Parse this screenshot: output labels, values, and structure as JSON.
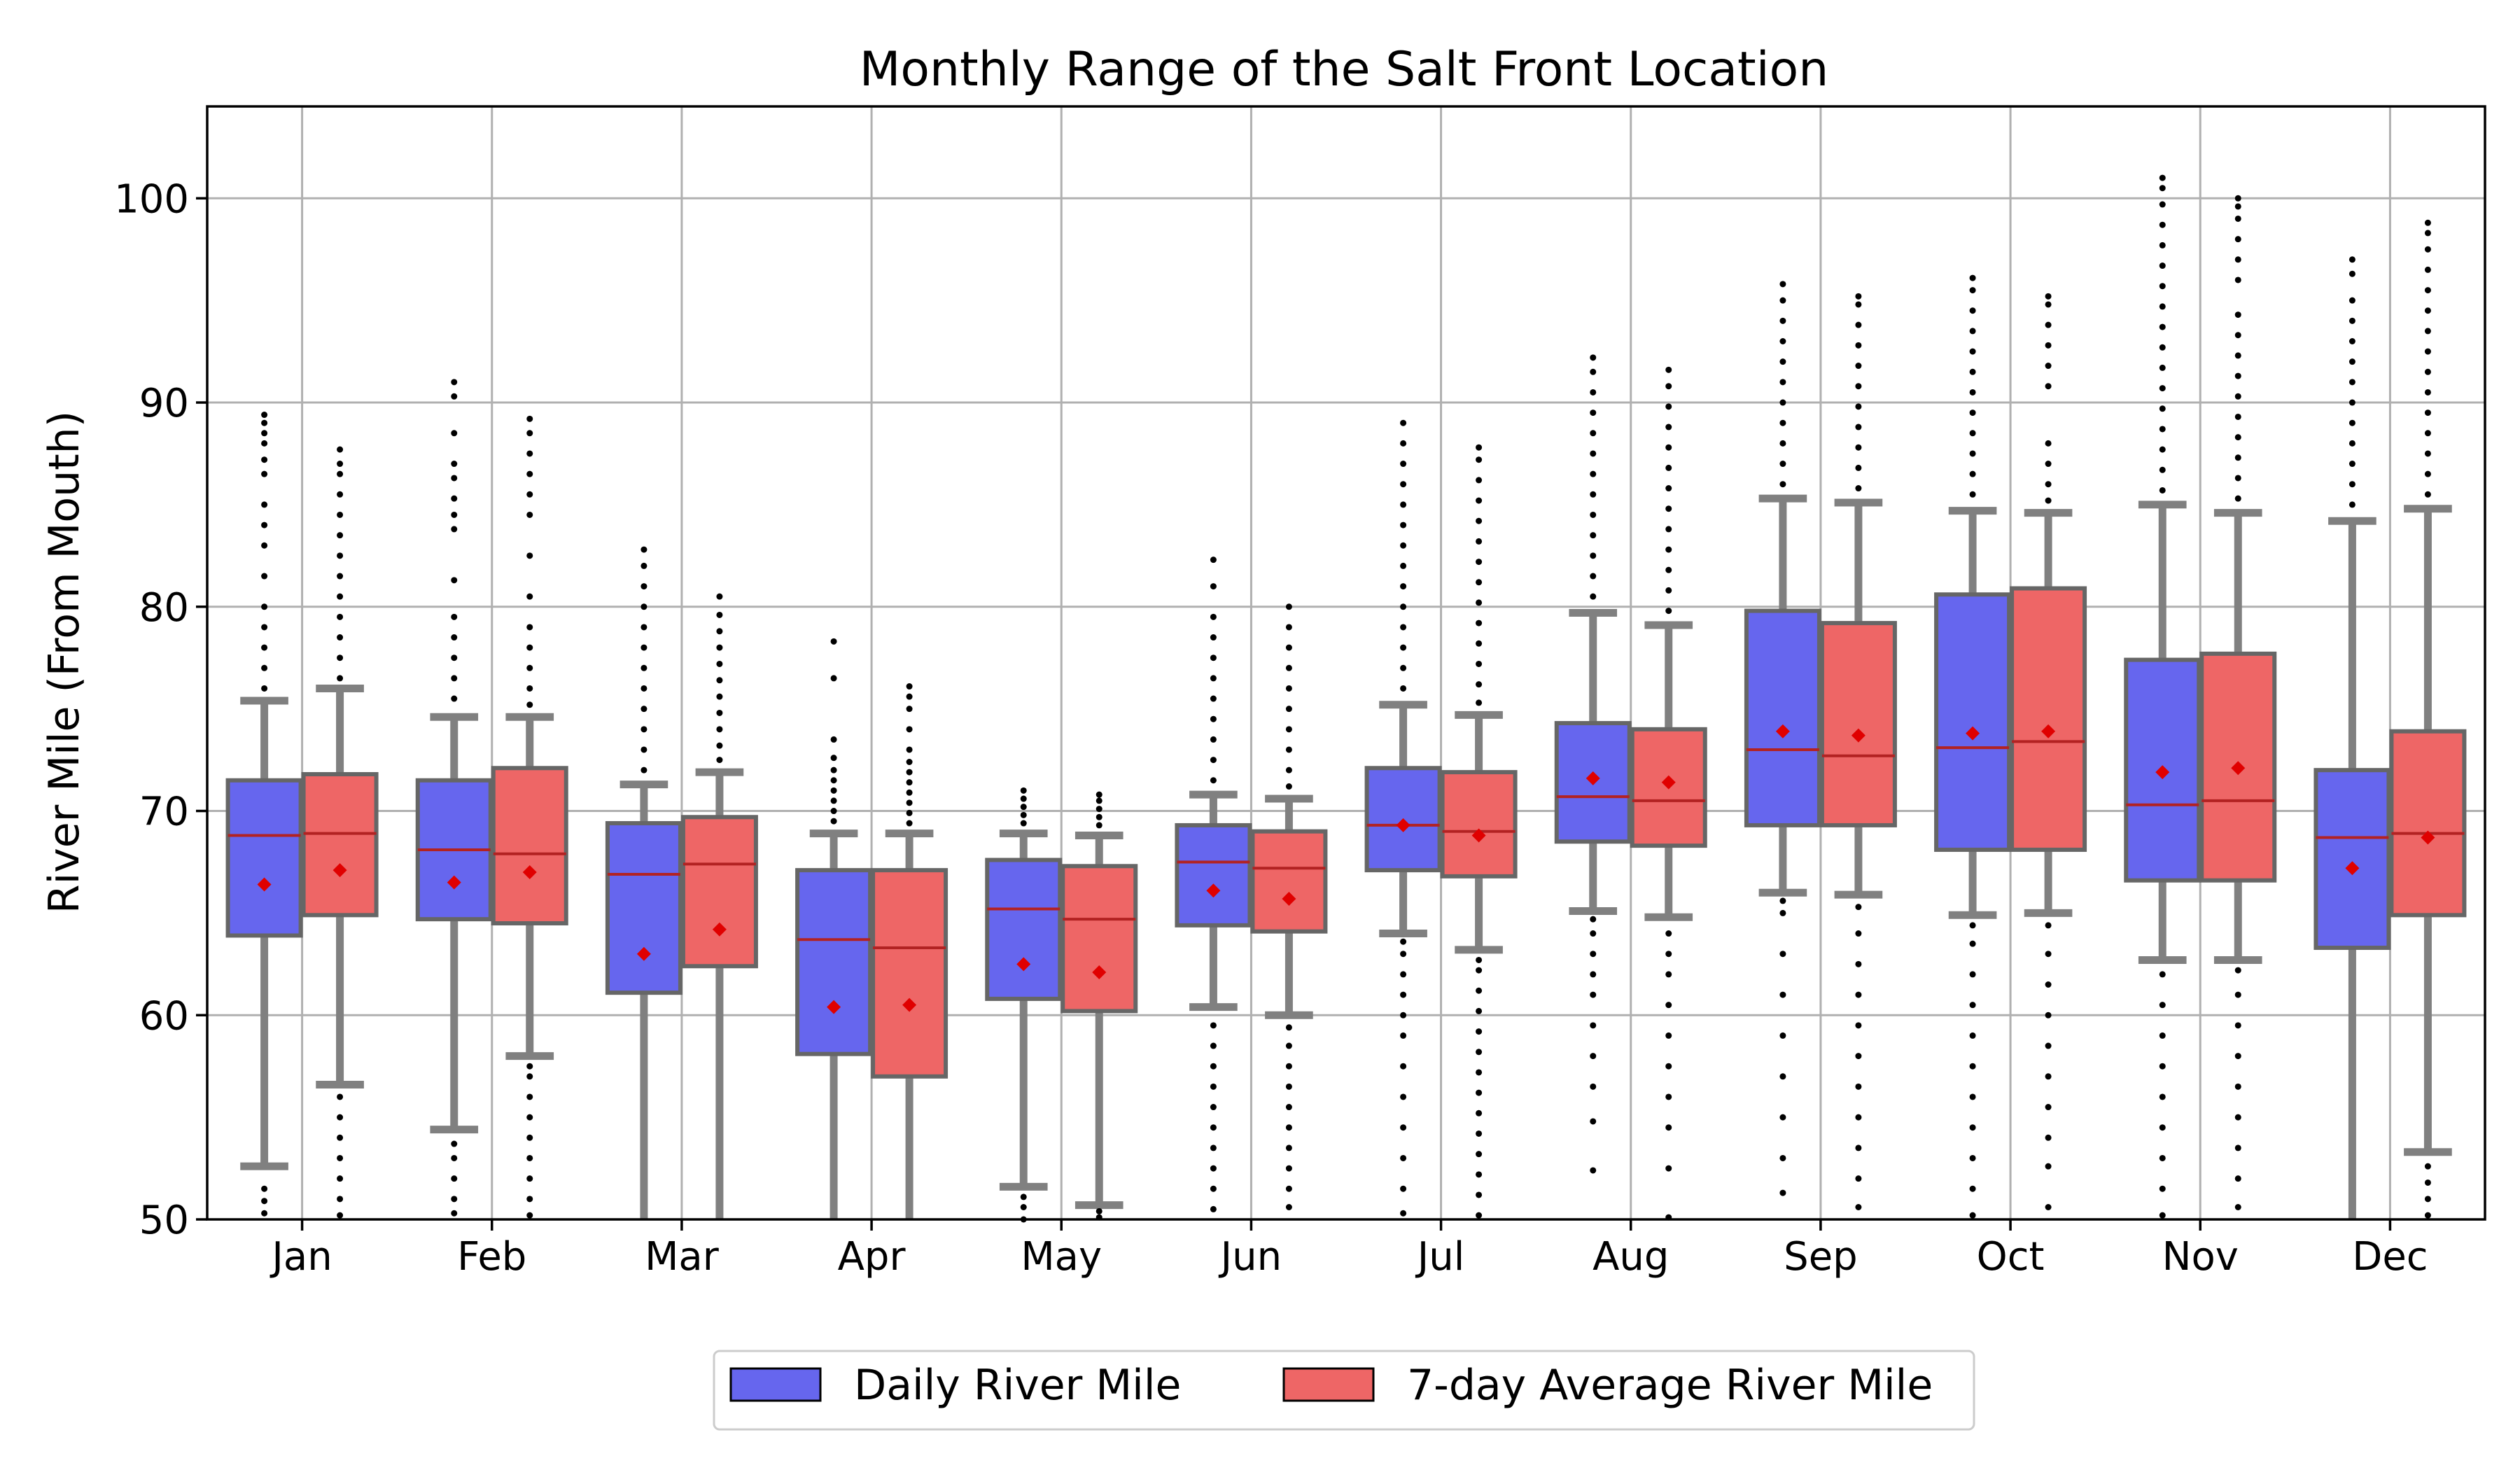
{
  "chart_data": {
    "type": "box",
    "title": "Monthly Range of the Salt Front Location",
    "xlabel": "",
    "ylabel": "River Mile (From Mouth)",
    "ylim": [
      50,
      104.5
    ],
    "yticks": [
      50,
      60,
      70,
      80,
      90,
      100
    ],
    "grid": true,
    "legend_position": "bottom-center",
    "categories": [
      "Jan",
      "Feb",
      "Mar",
      "Apr",
      "May",
      "Jun",
      "Jul",
      "Aug",
      "Sep",
      "Oct",
      "Nov",
      "Dec"
    ],
    "series": [
      {
        "name": "Daily River Mile",
        "color": "#6666ee",
        "stats": [
          {
            "whislo": 52.6,
            "q1": 63.9,
            "med": 68.8,
            "q3": 71.5,
            "whishi": 75.4,
            "mean": 66.4,
            "fliers_hi": [
              76.0,
              77.0,
              78.0,
              79.0,
              80.0,
              81.5,
              83.0,
              84.0,
              85.0,
              86.5,
              87.2,
              88.0,
              88.5,
              89.0,
              89.4
            ],
            "fliers_lo": [
              50.3,
              50.9,
              51.5
            ]
          },
          {
            "whislo": 54.4,
            "q1": 64.7,
            "med": 68.1,
            "q3": 71.5,
            "whishi": 74.6,
            "mean": 66.5,
            "fliers_hi": [
              75.5,
              76.5,
              77.5,
              78.5,
              79.5,
              81.3,
              83.8,
              84.5,
              85.3,
              86.3,
              87.0,
              88.5,
              90.3,
              91.0
            ],
            "fliers_lo": [
              50.3,
              51.0,
              52.0,
              53.0,
              53.7
            ]
          },
          {
            "whislo": 50.0,
            "q1": 61.1,
            "med": 66.9,
            "q3": 69.4,
            "whishi": 71.3,
            "mean": 63.0,
            "fliers_hi": [
              72.0,
              73.0,
              74.0,
              75.0,
              76.0,
              77.0,
              78.0,
              79.0,
              80.0,
              81.0,
              82.0,
              82.8
            ],
            "fliers_lo": []
          },
          {
            "whislo": 50.0,
            "q1": 58.1,
            "med": 63.7,
            "q3": 67.1,
            "whishi": 68.9,
            "mean": 60.4,
            "fliers_hi": [
              69.5,
              70.0,
              70.5,
              71.0,
              71.5,
              72.0,
              72.6,
              73.5,
              76.5,
              78.3
            ],
            "fliers_lo": []
          },
          {
            "whislo": 51.6,
            "q1": 60.8,
            "med": 65.2,
            "q3": 67.6,
            "whishi": 68.9,
            "mean": 62.5,
            "fliers_hi": [
              69.4,
              69.8,
              70.2,
              70.6,
              71.0
            ],
            "fliers_lo": [
              50.0,
              50.6,
              51.1
            ]
          },
          {
            "whislo": 60.4,
            "q1": 64.4,
            "med": 67.5,
            "q3": 69.3,
            "whishi": 70.8,
            "mean": 66.1,
            "fliers_hi": [
              71.5,
              72.5,
              73.5,
              74.5,
              75.5,
              76.5,
              77.5,
              78.5,
              79.5,
              81.0,
              82.3
            ],
            "fliers_lo": [
              50.5,
              51.5,
              52.5,
              53.5,
              54.5,
              55.5,
              56.5,
              57.5,
              58.5,
              59.5
            ]
          },
          {
            "whislo": 64.0,
            "q1": 67.1,
            "med": 69.3,
            "q3": 72.1,
            "whishi": 75.2,
            "mean": 69.3,
            "fliers_hi": [
              76.0,
              77.0,
              78.0,
              79.0,
              80.0,
              81.0,
              82.0,
              83.0,
              84.0,
              85.0,
              86.0,
              87.0,
              88.0,
              89.0
            ],
            "fliers_lo": [
              50.3,
              51.5,
              53.0,
              54.5,
              56.0,
              57.5,
              59.0,
              60.0,
              61.0,
              62.0,
              63.0,
              63.6
            ]
          },
          {
            "whislo": 65.1,
            "q1": 68.5,
            "med": 70.7,
            "q3": 74.3,
            "whishi": 79.7,
            "mean": 71.6,
            "fliers_hi": [
              80.5,
              81.5,
              82.5,
              83.5,
              84.5,
              85.5,
              86.5,
              87.5,
              88.5,
              89.5,
              90.5,
              91.5,
              92.2
            ],
            "fliers_lo": [
              52.4,
              54.8,
              56.5,
              58.0,
              59.5,
              61.0,
              62.0,
              63.0,
              64.0,
              64.7
            ]
          },
          {
            "whislo": 66.0,
            "q1": 69.3,
            "med": 73.0,
            "q3": 79.8,
            "whishi": 85.3,
            "mean": 73.9,
            "fliers_hi": [
              86.0,
              87.0,
              88.0,
              89.0,
              90.0,
              91.0,
              92.0,
              93.0,
              94.0,
              95.0,
              95.8
            ],
            "fliers_lo": [
              51.3,
              53.0,
              55.0,
              57.0,
              59.0,
              61.0,
              63.0,
              65.0,
              65.6
            ]
          },
          {
            "whislo": 64.9,
            "q1": 68.1,
            "med": 73.1,
            "q3": 80.6,
            "whishi": 84.7,
            "mean": 73.8,
            "fliers_hi": [
              85.5,
              86.5,
              87.5,
              88.5,
              89.5,
              90.5,
              91.5,
              92.5,
              93.5,
              94.5,
              95.5,
              96.1
            ],
            "fliers_lo": [
              50.2,
              51.5,
              53.0,
              54.5,
              56.0,
              57.5,
              59.0,
              60.5,
              62.0,
              63.5,
              64.4
            ]
          },
          {
            "whislo": 62.7,
            "q1": 66.6,
            "med": 70.3,
            "q3": 77.4,
            "whishi": 85.0,
            "mean": 71.9,
            "fliers_hi": [
              85.7,
              86.7,
              87.7,
              88.7,
              89.7,
              90.7,
              91.7,
              92.7,
              93.7,
              94.7,
              95.7,
              96.7,
              97.7,
              98.7,
              99.7,
              100.5,
              101.0
            ],
            "fliers_lo": [
              50.2,
              51.5,
              53.0,
              54.5,
              56.0,
              57.5,
              59.0,
              60.5,
              62.0
            ]
          },
          {
            "whislo": 50.0,
            "q1": 63.3,
            "med": 68.7,
            "q3": 72.0,
            "whishi": 84.2,
            "mean": 67.2,
            "fliers_hi": [
              85.0,
              86.0,
              87.0,
              88.0,
              89.0,
              90.0,
              91.0,
              92.0,
              93.0,
              94.0,
              95.0,
              96.3,
              97.0
            ],
            "fliers_lo": []
          }
        ]
      },
      {
        "name": "7-day Average River Mile",
        "color": "#ee6666",
        "stats": [
          {
            "whislo": 56.6,
            "q1": 64.9,
            "med": 68.9,
            "q3": 71.8,
            "whishi": 76.0,
            "mean": 67.1,
            "fliers_hi": [
              76.5,
              77.5,
              78.5,
              79.5,
              80.5,
              81.5,
              82.5,
              83.5,
              84.5,
              85.5,
              86.5,
              87.0,
              87.7
            ],
            "fliers_lo": [
              50.2,
              51.0,
              52.0,
              53.0,
              54.0,
              55.0,
              56.0
            ]
          },
          {
            "whislo": 58.0,
            "q1": 64.5,
            "med": 67.9,
            "q3": 72.1,
            "whishi": 74.6,
            "mean": 67.0,
            "fliers_hi": [
              75.2,
              76.0,
              77.0,
              78.0,
              79.0,
              80.5,
              82.5,
              84.5,
              85.5,
              86.5,
              87.5,
              88.5,
              89.2
            ],
            "fliers_lo": [
              50.2,
              51.0,
              52.0,
              53.0,
              54.0,
              55.0,
              56.0,
              57.0,
              57.5
            ]
          },
          {
            "whislo": 50.0,
            "q1": 62.4,
            "med": 67.4,
            "q3": 69.7,
            "whishi": 71.9,
            "mean": 64.2,
            "fliers_hi": [
              72.5,
              73.2,
              74.0,
              74.8,
              75.6,
              76.4,
              77.2,
              78.0,
              78.8,
              79.6,
              80.5
            ],
            "fliers_lo": []
          },
          {
            "whislo": 50.0,
            "q1": 57.0,
            "med": 63.3,
            "q3": 67.1,
            "whishi": 68.9,
            "mean": 60.5,
            "fliers_hi": [
              69.4,
              69.9,
              70.4,
              70.9,
              71.4,
              71.9,
              72.4,
              73.0,
              74.0,
              75.0,
              75.6,
              76.1
            ],
            "fliers_lo": []
          },
          {
            "whislo": 50.7,
            "q1": 60.2,
            "med": 64.7,
            "q3": 67.3,
            "whishi": 68.8,
            "mean": 62.1,
            "fliers_hi": [
              69.3,
              69.7,
              70.1,
              70.5,
              70.8
            ],
            "fliers_lo": [
              50.1,
              50.4
            ]
          },
          {
            "whislo": 60.0,
            "q1": 64.1,
            "med": 67.2,
            "q3": 69.0,
            "whishi": 70.6,
            "mean": 65.7,
            "fliers_hi": [
              71.2,
              72.0,
              73.0,
              74.0,
              75.0,
              76.0,
              77.0,
              78.0,
              79.0,
              80.0
            ],
            "fliers_lo": [
              50.6,
              51.5,
              52.5,
              53.5,
              54.5,
              55.5,
              56.5,
              57.5,
              58.5,
              59.4
            ]
          },
          {
            "whislo": 63.2,
            "q1": 66.8,
            "med": 69.0,
            "q3": 71.9,
            "whishi": 74.7,
            "mean": 68.8,
            "fliers_hi": [
              75.3,
              76.2,
              77.2,
              78.2,
              79.2,
              80.2,
              81.2,
              82.2,
              83.2,
              84.2,
              85.2,
              86.2,
              87.2,
              87.8
            ],
            "fliers_lo": [
              50.2,
              51.2,
              52.2,
              53.2,
              54.2,
              55.2,
              56.2,
              57.2,
              58.2,
              59.2,
              60.2,
              61.2,
              62.2,
              62.7
            ]
          },
          {
            "whislo": 64.8,
            "q1": 68.3,
            "med": 70.5,
            "q3": 74.0,
            "whishi": 79.1,
            "mean": 71.4,
            "fliers_hi": [
              79.8,
              80.8,
              81.8,
              82.8,
              83.8,
              84.8,
              85.8,
              86.8,
              87.8,
              88.8,
              89.8,
              90.8,
              91.6
            ],
            "fliers_lo": [
              50.1,
              52.5,
              54.5,
              56.0,
              57.5,
              59.0,
              60.5,
              62.0,
              63.0,
              64.0
            ]
          },
          {
            "whislo": 65.9,
            "q1": 69.3,
            "med": 72.7,
            "q3": 79.2,
            "whishi": 85.1,
            "mean": 73.7,
            "fliers_hi": [
              85.8,
              86.8,
              87.8,
              88.8,
              89.8,
              90.8,
              91.8,
              92.8,
              93.8,
              94.8,
              95.2
            ],
            "fliers_lo": [
              50.6,
              52.0,
              53.5,
              55.0,
              56.5,
              58.0,
              59.5,
              61.0,
              62.5,
              64.0,
              65.3
            ]
          },
          {
            "whislo": 65.0,
            "q1": 68.1,
            "med": 73.4,
            "q3": 80.9,
            "whishi": 84.6,
            "mean": 73.9,
            "fliers_hi": [
              85.2,
              86.0,
              87.0,
              88.0,
              90.8,
              91.8,
              92.8,
              93.8,
              94.8,
              95.2
            ],
            "fliers_lo": [
              50.6,
              52.6,
              54.0,
              55.5,
              57.0,
              58.5,
              60.0,
              61.5,
              63.0,
              64.4
            ]
          },
          {
            "whislo": 62.7,
            "q1": 66.6,
            "med": 70.5,
            "q3": 77.7,
            "whishi": 84.6,
            "mean": 72.1,
            "fliers_hi": [
              85.3,
              86.3,
              87.3,
              88.3,
              89.3,
              90.3,
              91.3,
              92.3,
              93.3,
              94.3,
              96.0,
              97.0,
              98.0,
              99.0,
              99.6,
              100.0
            ],
            "fliers_lo": [
              50.6,
              52.0,
              53.5,
              55.0,
              56.5,
              58.0,
              59.5,
              61.0,
              62.2
            ]
          },
          {
            "whislo": 53.3,
            "q1": 64.9,
            "med": 68.9,
            "q3": 73.9,
            "whishi": 84.8,
            "mean": 68.7,
            "fliers_hi": [
              85.5,
              86.5,
              87.5,
              88.5,
              89.5,
              90.5,
              91.5,
              92.5,
              93.5,
              94.5,
              95.5,
              96.5,
              97.5,
              98.3,
              98.8
            ],
            "fliers_lo": [
              50.2,
              51.0,
              51.8,
              52.6
            ]
          }
        ]
      }
    ]
  }
}
